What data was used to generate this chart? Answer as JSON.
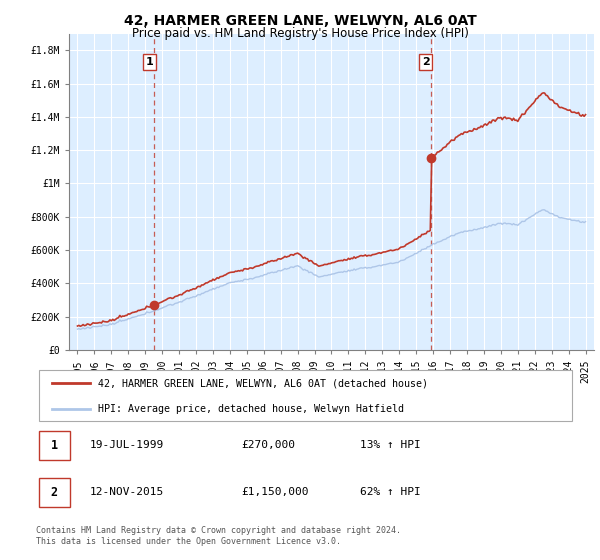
{
  "title": "42, HARMER GREEN LANE, WELWYN, AL6 0AT",
  "subtitle": "Price paid vs. HM Land Registry's House Price Index (HPI)",
  "ylabel_ticks": [
    "£0",
    "£200K",
    "£400K",
    "£600K",
    "£800K",
    "£1M",
    "£1.2M",
    "£1.4M",
    "£1.6M",
    "£1.8M"
  ],
  "ylabel_values": [
    0,
    200000,
    400000,
    600000,
    800000,
    1000000,
    1200000,
    1400000,
    1600000,
    1800000
  ],
  "ylim": [
    0,
    1900000
  ],
  "xlim_start": 1994.5,
  "xlim_end": 2025.5,
  "sale1_date": 1999.54,
  "sale1_price": 270000,
  "sale2_date": 2015.87,
  "sale2_price": 1150000,
  "hpi_color": "#aec6e8",
  "property_color": "#c0392b",
  "dashed_color": "#c0392b",
  "shade_color": "#ddeeff",
  "legend_label_property": "42, HARMER GREEN LANE, WELWYN, AL6 0AT (detached house)",
  "legend_label_hpi": "HPI: Average price, detached house, Welwyn Hatfield",
  "table_row1": [
    "1",
    "19-JUL-1999",
    "£270,000",
    "13% ↑ HPI"
  ],
  "table_row2": [
    "2",
    "12-NOV-2015",
    "£1,150,000",
    "62% ↑ HPI"
  ],
  "footnote": "Contains HM Land Registry data © Crown copyright and database right 2024.\nThis data is licensed under the Open Government Licence v3.0.",
  "title_fontsize": 10,
  "subtitle_fontsize": 8.5,
  "tick_fontsize": 7,
  "xtick_years": [
    1995,
    1996,
    1997,
    1998,
    1999,
    2000,
    2001,
    2002,
    2003,
    2004,
    2005,
    2006,
    2007,
    2008,
    2009,
    2010,
    2011,
    2012,
    2013,
    2014,
    2015,
    2016,
    2017,
    2018,
    2019,
    2020,
    2021,
    2022,
    2023,
    2024,
    2025
  ]
}
